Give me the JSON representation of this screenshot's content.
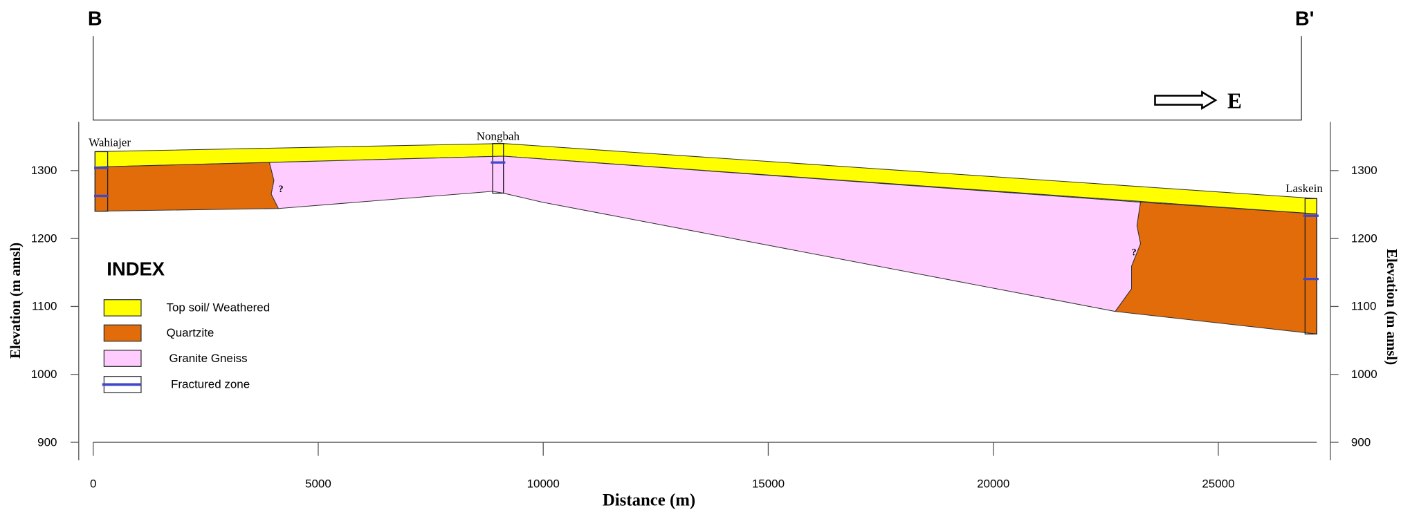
{
  "header": {
    "left_label": "B",
    "right_label": "B'",
    "direction": "E"
  },
  "wells": [
    "Wahiajer",
    "Nongbah",
    "Laskein"
  ],
  "uncertain_marks": [
    "?",
    "?"
  ],
  "axes": {
    "x_label": "Distance (m)",
    "y_label": "Elevation (m amsl)",
    "y2_label": "Elevation (m amsl)",
    "xticks": [
      0,
      5000,
      10000,
      15000,
      20000,
      25000
    ],
    "yticks": [
      900,
      1000,
      1100,
      1200,
      1300
    ]
  },
  "legend": {
    "title": "INDEX",
    "items": [
      "Top soil/ Weathered",
      "Quartzite",
      "Granite Gneiss",
      "Fractured zone"
    ]
  }
}
